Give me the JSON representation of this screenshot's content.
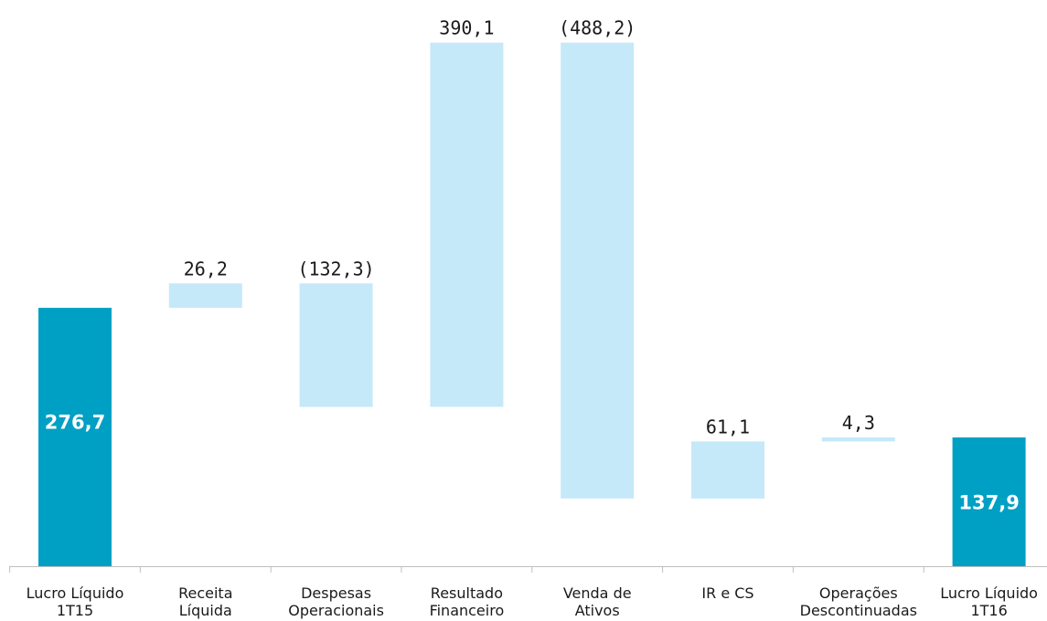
{
  "chart_data": {
    "type": "bar",
    "subtype": "waterfall",
    "title": "",
    "xlabel": "",
    "ylabel": "",
    "ylim": [
      0,
      1000
    ],
    "grid": false,
    "legend": "none",
    "categories": [
      [
        "Lucro Líquido",
        "1T15"
      ],
      [
        "Receita",
        "Líquida"
      ],
      [
        "Despesas",
        "Operacionais"
      ],
      [
        "Resultado",
        "Financeiro"
      ],
      [
        "Venda de",
        "Ativos"
      ],
      [
        "IR e CS"
      ],
      [
        "Operações",
        "Descontinuadas"
      ],
      [
        "Lucro Líquido",
        "1T16"
      ]
    ],
    "bars": [
      {
        "kind": "total",
        "base": 0,
        "top": 276.7,
        "label": "276,7"
      },
      {
        "kind": "delta",
        "base": 276.7,
        "top": 302.9,
        "label": "26,2"
      },
      {
        "kind": "delta",
        "base": 170.6,
        "top": 302.9,
        "label": "(132,3)"
      },
      {
        "kind": "delta",
        "base": 170.6,
        "top": 560.7,
        "label": "390,1"
      },
      {
        "kind": "delta",
        "base": 72.5,
        "top": 560.7,
        "label": "(488,2)"
      },
      {
        "kind": "delta",
        "base": 72.5,
        "top": 133.6,
        "label": "61,1"
      },
      {
        "kind": "delta",
        "base": 133.6,
        "top": 137.9,
        "label": "4,3"
      },
      {
        "kind": "total",
        "base": 0,
        "top": 137.9,
        "label": "137,9"
      }
    ],
    "colors": {
      "total": "#00a0c4",
      "delta": "#c5e9f8",
      "axis": "#bfbfbf"
    }
  }
}
